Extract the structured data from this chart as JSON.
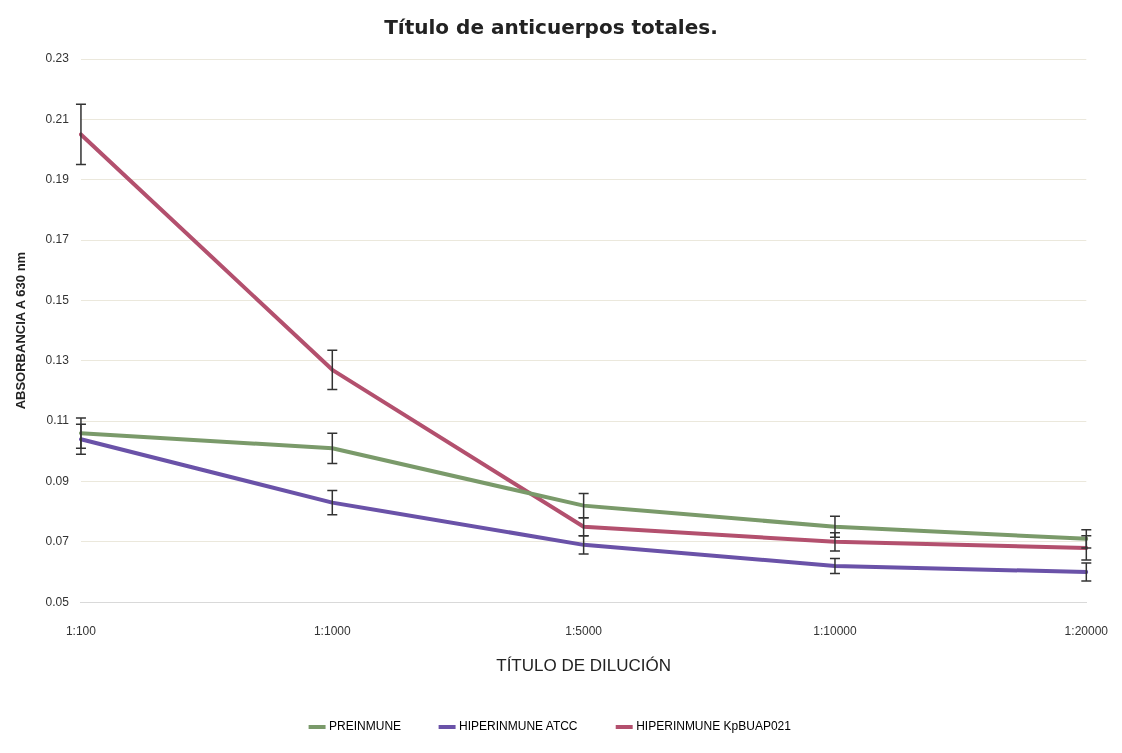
{
  "chart_data": {
    "type": "line",
    "title": "Título de anticuerpos totales.",
    "xlabel": "TÍTULO DE DILUCIÓN",
    "ylabel": "ABSORBANCIA A 630 nm",
    "categories": [
      "1:100",
      "1:1000",
      "1:5000",
      "1:10000",
      "1:20000"
    ],
    "series": [
      {
        "name": "PREINMUNE",
        "color": "#7a9a6a",
        "values": [
          0.106,
          0.101,
          0.082,
          0.075,
          0.071
        ],
        "errors": [
          0.005,
          0.005,
          0.004,
          0.0035,
          0.003
        ]
      },
      {
        "name": "HIPERINMUNE ATCC",
        "color": "#6a52a8",
        "values": [
          0.104,
          0.083,
          0.069,
          0.062,
          0.06
        ],
        "errors": [
          0.005,
          0.004,
          0.003,
          0.0025,
          0.003
        ]
      },
      {
        "name": "HIPERINMUNE KpBUAP021",
        "color": "#b3506e",
        "values": [
          0.205,
          0.127,
          0.075,
          0.07,
          0.068
        ],
        "errors": [
          0.01,
          0.0065,
          0.003,
          0.003,
          0.004
        ]
      }
    ],
    "ylim": [
      0.05,
      0.23
    ],
    "yticks": [
      0.05,
      0.07,
      0.09,
      0.11,
      0.13,
      0.15,
      0.17,
      0.19,
      0.21,
      0.23
    ],
    "grid": "y",
    "legend": "bottom",
    "marker": "none",
    "line_style": "solid"
  }
}
